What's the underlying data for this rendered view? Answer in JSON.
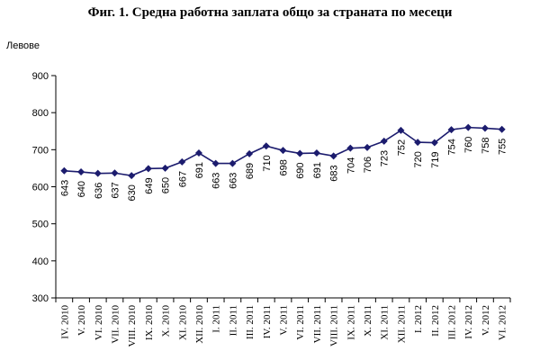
{
  "chart_data": {
    "type": "line",
    "title": "Фиг. 1. Средна работна заплата общо за страната по месеци",
    "ylabel": "Левове",
    "xlabel": "",
    "ylim": [
      300,
      900
    ],
    "yticks": [
      "300",
      "400",
      "500",
      "600",
      "700",
      "800",
      "900"
    ],
    "grid": false,
    "legend": "none",
    "colors": {
      "line": "#1c1c6e",
      "marker": "#1c1c6e",
      "axis": "#000000"
    },
    "categories": [
      "IV. 2010",
      "V. 2010",
      "VI. 2010",
      "VII. 2010",
      "VIII. 2010",
      "IX. 2010",
      "X. 2010",
      "XI. 2010",
      "XII. 2010",
      "I. 2011",
      "II. 2011",
      "III. 2011",
      "IV. 2011",
      "V. 2011",
      "VI. 2011",
      "VII. 2011",
      "VIII. 2011",
      "IX. 2011",
      "X. 2011",
      "XI. 2011",
      "XII. 2011",
      "I. 2012",
      "II. 2012",
      "III. 2012",
      "IV. 2012",
      "V. 2012",
      "VI. 2012"
    ],
    "values": [
      643,
      640,
      636,
      637,
      630,
      649,
      650,
      667,
      691,
      663,
      663,
      689,
      710,
      698,
      690,
      691,
      683,
      704,
      706,
      723,
      752,
      720,
      719,
      754,
      760,
      758,
      755
    ],
    "labels": [
      "643",
      "640",
      "636",
      "637",
      "630",
      "649",
      "650",
      "667",
      "691",
      "663",
      "663",
      "689",
      "710",
      "698",
      "690",
      "691",
      "683",
      "704",
      "706",
      "723",
      "752",
      "720",
      "719",
      "754",
      "760",
      "758",
      "755"
    ]
  }
}
